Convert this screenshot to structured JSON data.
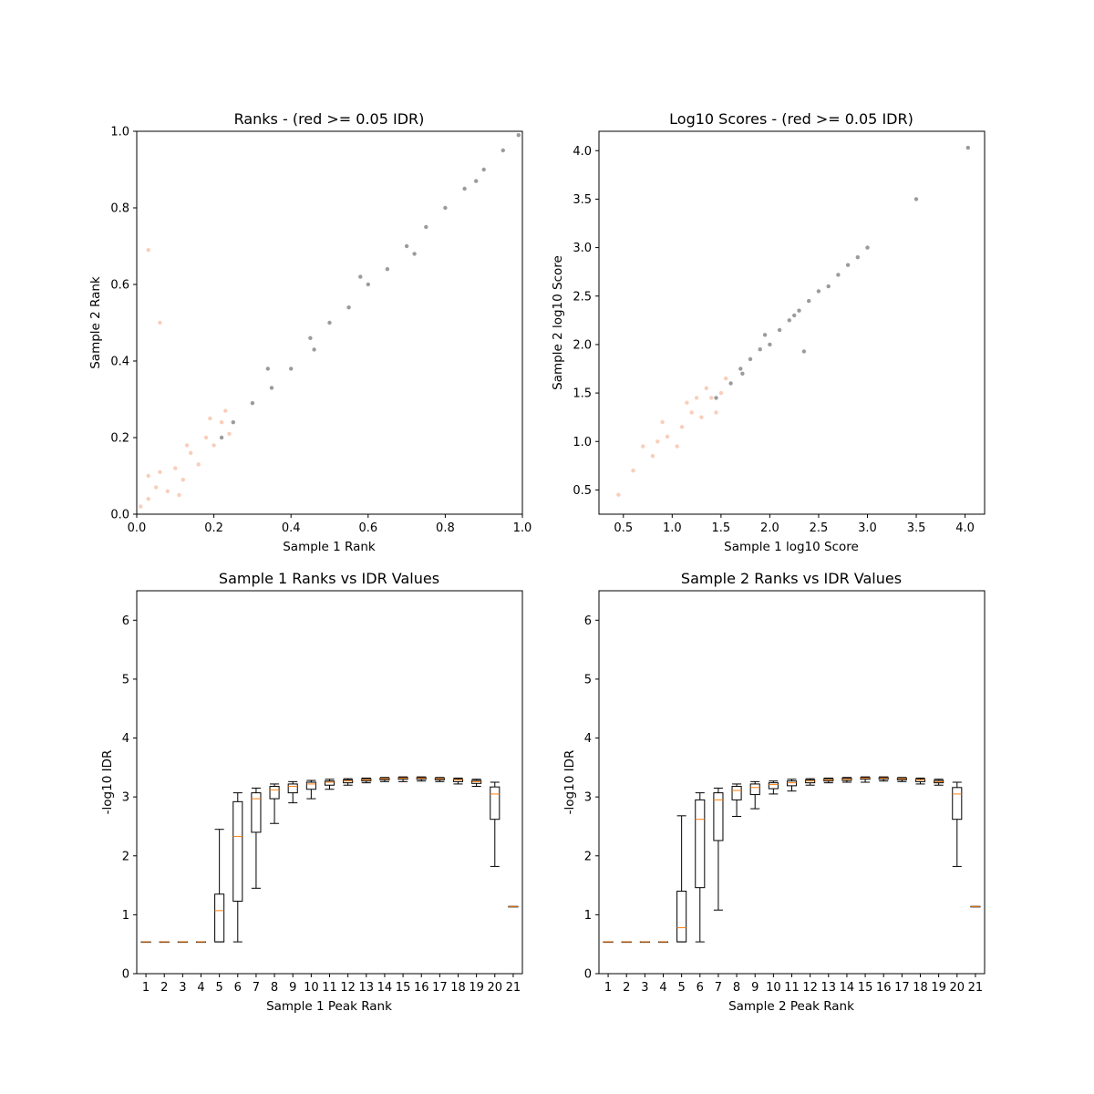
{
  "chart_data": [
    {
      "type": "scatter",
      "title": "Ranks - (red >= 0.05 IDR)",
      "xlabel": "Sample 1 Rank",
      "ylabel": "Sample 2 Rank",
      "xlim": [
        0,
        1
      ],
      "ylim": [
        0,
        1
      ],
      "xticks": [
        0.0,
        0.2,
        0.4,
        0.6,
        0.8,
        1.0
      ],
      "yticks": [
        0.0,
        0.2,
        0.4,
        0.6,
        0.8,
        1.0
      ],
      "xtick_labels": [
        "0.0",
        "0.2",
        "0.4",
        "0.6",
        "0.8",
        "1.0"
      ],
      "ytick_labels": [
        "0.0",
        "0.2",
        "0.4",
        "0.6",
        "0.8",
        "1.0"
      ],
      "series": [
        {
          "color": "#f4a582",
          "note_color": "red",
          "points": [
            [
              0.01,
              0.02
            ],
            [
              0.03,
              0.04
            ],
            [
              0.05,
              0.07
            ],
            [
              0.08,
              0.06
            ],
            [
              0.1,
              0.12
            ],
            [
              0.12,
              0.09
            ],
            [
              0.14,
              0.16
            ],
            [
              0.16,
              0.13
            ],
            [
              0.18,
              0.2
            ],
            [
              0.2,
              0.18
            ],
            [
              0.22,
              0.24
            ],
            [
              0.24,
              0.21
            ],
            [
              0.06,
              0.11
            ],
            [
              0.13,
              0.18
            ],
            [
              0.19,
              0.25
            ],
            [
              0.03,
              0.69
            ],
            [
              0.06,
              0.5
            ],
            [
              0.03,
              0.1
            ],
            [
              0.23,
              0.27
            ],
            [
              0.11,
              0.05
            ]
          ]
        },
        {
          "color": "#222222",
          "note_color": "black",
          "points": [
            [
              0.22,
              0.2
            ],
            [
              0.25,
              0.24
            ],
            [
              0.3,
              0.29
            ],
            [
              0.35,
              0.33
            ],
            [
              0.4,
              0.38
            ],
            [
              0.45,
              0.46
            ],
            [
              0.5,
              0.5
            ],
            [
              0.55,
              0.54
            ],
            [
              0.6,
              0.6
            ],
            [
              0.65,
              0.64
            ],
            [
              0.7,
              0.7
            ],
            [
              0.75,
              0.75
            ],
            [
              0.8,
              0.8
            ],
            [
              0.85,
              0.85
            ],
            [
              0.9,
              0.9
            ],
            [
              0.95,
              0.95
            ],
            [
              0.99,
              0.99
            ],
            [
              0.34,
              0.38
            ],
            [
              0.46,
              0.43
            ],
            [
              0.58,
              0.62
            ],
            [
              0.72,
              0.68
            ],
            [
              0.88,
              0.87
            ]
          ]
        }
      ]
    },
    {
      "type": "scatter",
      "title": "Log10 Scores - (red >= 0.05 IDR)",
      "xlabel": "Sample 1 log10 Score",
      "ylabel": "Sample 2 log10 Score",
      "xlim": [
        0.25,
        4.2
      ],
      "ylim": [
        0.25,
        4.2
      ],
      "xticks": [
        0.5,
        1.0,
        1.5,
        2.0,
        2.5,
        3.0,
        3.5,
        4.0
      ],
      "yticks": [
        0.5,
        1.0,
        1.5,
        2.0,
        2.5,
        3.0,
        3.5,
        4.0
      ],
      "xtick_labels": [
        "0.5",
        "1.0",
        "1.5",
        "2.0",
        "2.5",
        "3.0",
        "3.5",
        "4.0"
      ],
      "ytick_labels": [
        "0.5",
        "1.0",
        "1.5",
        "2.0",
        "2.5",
        "3.0",
        "3.5",
        "4.0"
      ],
      "series": [
        {
          "color": "#f4a582",
          "note_color": "red",
          "points": [
            [
              0.45,
              0.45
            ],
            [
              0.6,
              0.7
            ],
            [
              0.8,
              0.85
            ],
            [
              0.95,
              1.05
            ],
            [
              1.1,
              1.15
            ],
            [
              1.2,
              1.3
            ],
            [
              1.3,
              1.25
            ],
            [
              1.4,
              1.45
            ],
            [
              1.5,
              1.5
            ],
            [
              1.55,
              1.65
            ],
            [
              0.9,
              1.2
            ],
            [
              1.05,
              0.95
            ],
            [
              1.25,
              1.45
            ],
            [
              1.45,
              1.3
            ],
            [
              0.7,
              0.95
            ],
            [
              0.85,
              1.0
            ],
            [
              1.15,
              1.4
            ],
            [
              1.35,
              1.55
            ]
          ]
        },
        {
          "color": "#222222",
          "note_color": "black",
          "points": [
            [
              1.45,
              1.45
            ],
            [
              1.6,
              1.6
            ],
            [
              1.7,
              1.75
            ],
            [
              1.8,
              1.85
            ],
            [
              1.9,
              1.95
            ],
            [
              2.0,
              2.0
            ],
            [
              2.1,
              2.15
            ],
            [
              2.2,
              2.25
            ],
            [
              2.3,
              2.35
            ],
            [
              2.4,
              2.45
            ],
            [
              2.5,
              2.55
            ],
            [
              2.6,
              2.6
            ],
            [
              2.7,
              2.72
            ],
            [
              2.8,
              2.82
            ],
            [
              2.9,
              2.9
            ],
            [
              3.0,
              3.0
            ],
            [
              3.5,
              3.5
            ],
            [
              4.03,
              4.03
            ],
            [
              2.35,
              1.93
            ],
            [
              1.72,
              1.7
            ],
            [
              1.95,
              2.1
            ],
            [
              2.25,
              2.3
            ]
          ]
        }
      ]
    },
    {
      "type": "box",
      "title": "Sample 1 Ranks vs IDR Values",
      "xlabel": "Sample 1 Peak Rank",
      "ylabel": "-log10 IDR",
      "xlim": [
        0,
        21
      ],
      "ylim": [
        0,
        6.5
      ],
      "xtick_labels": [
        "1",
        "2",
        "3",
        "4",
        "5",
        "6",
        "7",
        "8",
        "9",
        "10",
        "11",
        "12",
        "13",
        "14",
        "15",
        "16",
        "17",
        "18",
        "19",
        "20",
        "21"
      ],
      "yticks": [
        0,
        1,
        2,
        3,
        4,
        5,
        6
      ],
      "ytick_labels": [
        "0",
        "1",
        "2",
        "3",
        "4",
        "5",
        "6"
      ],
      "boxes": [
        {
          "x": 1,
          "whislo": 0.54,
          "q1": 0.54,
          "med": 0.54,
          "q3": 0.54,
          "whishi": 0.54
        },
        {
          "x": 2,
          "whislo": 0.54,
          "q1": 0.54,
          "med": 0.54,
          "q3": 0.54,
          "whishi": 0.54
        },
        {
          "x": 3,
          "whislo": 0.54,
          "q1": 0.54,
          "med": 0.54,
          "q3": 0.54,
          "whishi": 0.54
        },
        {
          "x": 4,
          "whislo": 0.54,
          "q1": 0.54,
          "med": 0.54,
          "q3": 0.54,
          "whishi": 0.54
        },
        {
          "x": 5,
          "whislo": 0.54,
          "q1": 0.54,
          "med": 1.07,
          "q3": 1.35,
          "whishi": 2.45
        },
        {
          "x": 6,
          "whislo": 0.54,
          "q1": 1.23,
          "med": 2.33,
          "q3": 2.92,
          "whishi": 3.07
        },
        {
          "x": 7,
          "whislo": 1.45,
          "q1": 2.4,
          "med": 2.97,
          "q3": 3.07,
          "whishi": 3.15
        },
        {
          "x": 8,
          "whislo": 2.55,
          "q1": 2.97,
          "med": 3.12,
          "q3": 3.18,
          "whishi": 3.22
        },
        {
          "x": 9,
          "whislo": 2.9,
          "q1": 3.07,
          "med": 3.18,
          "q3": 3.22,
          "whishi": 3.26
        },
        {
          "x": 10,
          "whislo": 2.97,
          "q1": 3.13,
          "med": 3.22,
          "q3": 3.25,
          "whishi": 3.28
        },
        {
          "x": 11,
          "whislo": 3.13,
          "q1": 3.2,
          "med": 3.25,
          "q3": 3.27,
          "whishi": 3.3
        },
        {
          "x": 12,
          "whislo": 3.2,
          "q1": 3.24,
          "med": 3.27,
          "q3": 3.29,
          "whishi": 3.31
        },
        {
          "x": 13,
          "whislo": 3.24,
          "q1": 3.27,
          "med": 3.29,
          "q3": 3.31,
          "whishi": 3.32
        },
        {
          "x": 14,
          "whislo": 3.26,
          "q1": 3.29,
          "med": 3.31,
          "q3": 3.32,
          "whishi": 3.33
        },
        {
          "x": 15,
          "whislo": 3.26,
          "q1": 3.3,
          "med": 3.32,
          "q3": 3.33,
          "whishi": 3.34
        },
        {
          "x": 16,
          "whislo": 3.27,
          "q1": 3.3,
          "med": 3.32,
          "q3": 3.33,
          "whishi": 3.34
        },
        {
          "x": 17,
          "whislo": 3.26,
          "q1": 3.29,
          "med": 3.31,
          "q3": 3.32,
          "whishi": 3.33
        },
        {
          "x": 18,
          "whislo": 3.22,
          "q1": 3.26,
          "med": 3.29,
          "q3": 3.3,
          "whishi": 3.32
        },
        {
          "x": 19,
          "whislo": 3.18,
          "q1": 3.23,
          "med": 3.26,
          "q3": 3.28,
          "whishi": 3.3
        },
        {
          "x": 20,
          "whislo": 1.82,
          "q1": 2.62,
          "med": 3.05,
          "q3": 3.17,
          "whishi": 3.25
        },
        {
          "x": 21,
          "whislo": 1.14,
          "q1": 1.14,
          "med": 1.14,
          "q3": 1.14,
          "whishi": 1.14
        }
      ]
    },
    {
      "type": "box",
      "title": "Sample 2 Ranks vs IDR Values",
      "xlabel": "Sample 2 Peak Rank",
      "ylabel": "-log10 IDR",
      "xlim": [
        0,
        21
      ],
      "ylim": [
        0,
        6.5
      ],
      "xtick_labels": [
        "1",
        "2",
        "3",
        "4",
        "5",
        "6",
        "7",
        "8",
        "9",
        "10",
        "11",
        "12",
        "13",
        "14",
        "15",
        "16",
        "17",
        "18",
        "19",
        "20",
        "21"
      ],
      "yticks": [
        0,
        1,
        2,
        3,
        4,
        5,
        6
      ],
      "ytick_labels": [
        "0",
        "1",
        "2",
        "3",
        "4",
        "5",
        "6"
      ],
      "boxes": [
        {
          "x": 1,
          "whislo": 0.54,
          "q1": 0.54,
          "med": 0.54,
          "q3": 0.54,
          "whishi": 0.54
        },
        {
          "x": 2,
          "whislo": 0.54,
          "q1": 0.54,
          "med": 0.54,
          "q3": 0.54,
          "whishi": 0.54
        },
        {
          "x": 3,
          "whislo": 0.54,
          "q1": 0.54,
          "med": 0.54,
          "q3": 0.54,
          "whishi": 0.54
        },
        {
          "x": 4,
          "whislo": 0.54,
          "q1": 0.54,
          "med": 0.54,
          "q3": 0.54,
          "whishi": 0.54
        },
        {
          "x": 5,
          "whislo": 0.54,
          "q1": 0.54,
          "med": 0.78,
          "q3": 1.4,
          "whishi": 2.68
        },
        {
          "x": 6,
          "whislo": 0.54,
          "q1": 1.46,
          "med": 2.62,
          "q3": 2.95,
          "whishi": 3.07
        },
        {
          "x": 7,
          "whislo": 1.08,
          "q1": 2.26,
          "med": 2.95,
          "q3": 3.07,
          "whishi": 3.15
        },
        {
          "x": 8,
          "whislo": 2.67,
          "q1": 2.95,
          "med": 3.11,
          "q3": 3.18,
          "whishi": 3.22
        },
        {
          "x": 9,
          "whislo": 2.8,
          "q1": 3.04,
          "med": 3.16,
          "q3": 3.22,
          "whishi": 3.26
        },
        {
          "x": 10,
          "whislo": 3.05,
          "q1": 3.14,
          "med": 3.21,
          "q3": 3.24,
          "whishi": 3.27
        },
        {
          "x": 11,
          "whislo": 3.1,
          "q1": 3.19,
          "med": 3.24,
          "q3": 3.27,
          "whishi": 3.3
        },
        {
          "x": 12,
          "whislo": 3.2,
          "q1": 3.24,
          "med": 3.27,
          "q3": 3.29,
          "whishi": 3.31
        },
        {
          "x": 13,
          "whislo": 3.24,
          "q1": 3.27,
          "med": 3.29,
          "q3": 3.31,
          "whishi": 3.32
        },
        {
          "x": 14,
          "whislo": 3.25,
          "q1": 3.28,
          "med": 3.3,
          "q3": 3.32,
          "whishi": 3.33
        },
        {
          "x": 15,
          "whislo": 3.25,
          "q1": 3.3,
          "med": 3.32,
          "q3": 3.33,
          "whishi": 3.34
        },
        {
          "x": 16,
          "whislo": 3.27,
          "q1": 3.3,
          "med": 3.32,
          "q3": 3.33,
          "whishi": 3.34
        },
        {
          "x": 17,
          "whislo": 3.26,
          "q1": 3.29,
          "med": 3.31,
          "q3": 3.32,
          "whishi": 3.33
        },
        {
          "x": 18,
          "whislo": 3.22,
          "q1": 3.26,
          "med": 3.29,
          "q3": 3.3,
          "whishi": 3.32
        },
        {
          "x": 19,
          "whislo": 3.2,
          "q1": 3.24,
          "med": 3.26,
          "q3": 3.28,
          "whishi": 3.3
        },
        {
          "x": 20,
          "whislo": 1.82,
          "q1": 2.62,
          "med": 3.05,
          "q3": 3.16,
          "whishi": 3.25
        },
        {
          "x": 21,
          "whislo": 1.14,
          "q1": 1.14,
          "med": 1.14,
          "q3": 1.14,
          "whishi": 1.14
        }
      ]
    }
  ]
}
